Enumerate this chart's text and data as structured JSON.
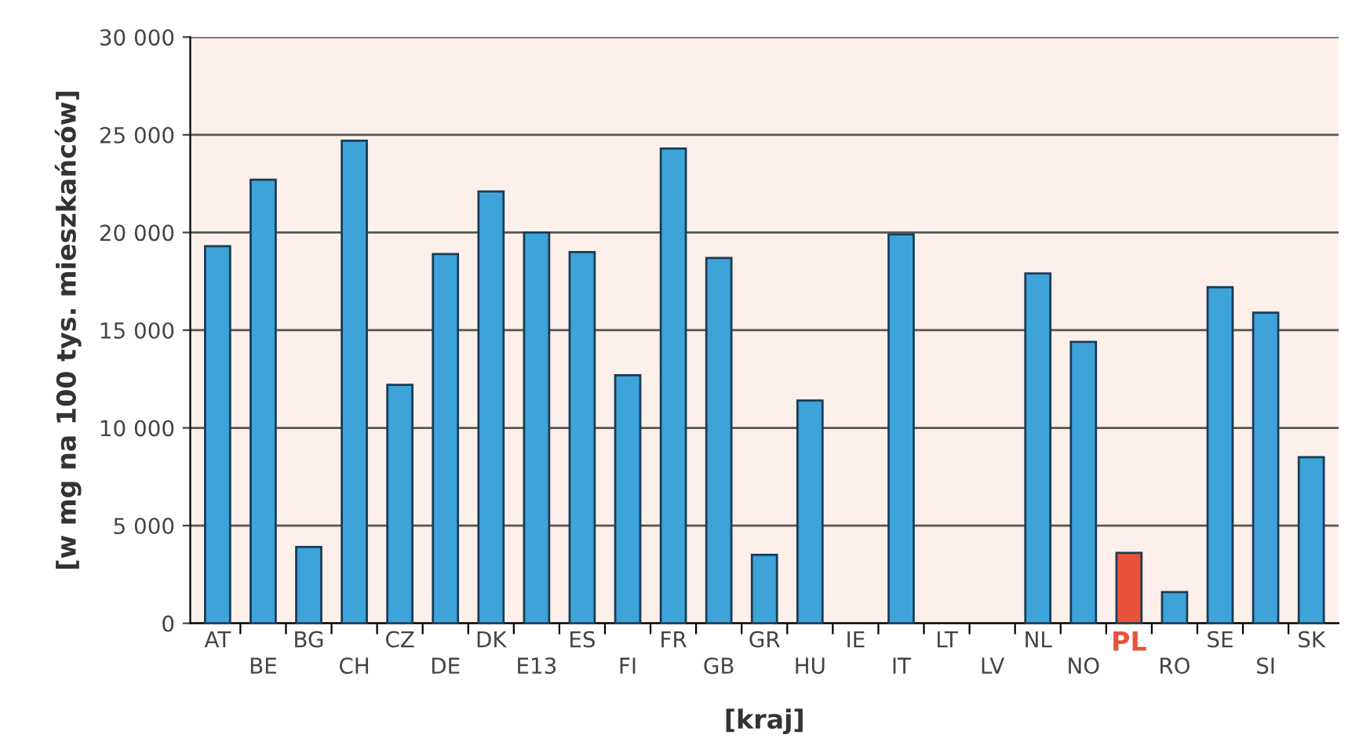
{
  "chart_data": {
    "type": "bar",
    "xlabel": "[kraj]",
    "ylabel": "[w mg na 100 tys. mieszkańców]",
    "categories": [
      "AT",
      "BE",
      "BG",
      "CH",
      "CZ",
      "DE",
      "DK",
      "E13",
      "ES",
      "FI",
      "FR",
      "GB",
      "GR",
      "HU",
      "IE",
      "IT",
      "LT",
      "LV",
      "NL",
      "NO",
      "PL",
      "RO",
      "SE",
      "SI",
      "SK"
    ],
    "values": [
      19300,
      22700,
      3900,
      24700,
      12200,
      18900,
      22100,
      20000,
      19000,
      12700,
      24300,
      18700,
      3500,
      11400,
      null,
      19900,
      null,
      null,
      17900,
      14400,
      3600,
      1600,
      17200,
      15900,
      8500
    ],
    "color": "#3ea3d8",
    "colors": [
      "#3ea3d8",
      "#3ea3d8",
      "#3ea3d8",
      "#3ea3d8",
      "#3ea3d8",
      "#3ea3d8",
      "#3ea3d8",
      "#3ea3d8",
      "#3ea3d8",
      "#3ea3d8",
      "#3ea3d8",
      "#3ea3d8",
      "#3ea3d8",
      "#3ea3d8",
      "#3ea3d8",
      "#3ea3d8",
      "#3ea3d8",
      "#3ea3d8",
      "#3ea3d8",
      "#3ea3d8",
      "#e8533a",
      "#3ea3d8",
      "#3ea3d8",
      "#3ea3d8",
      "#3ea3d8"
    ],
    "ylim": [
      0,
      30000
    ],
    "yticks": [
      0,
      {
        "value": 5000,
        "label": "5 000"
      },
      {
        "value": 10000,
        "label": "10 000"
      },
      {
        "value": 15000,
        "label": "15 000"
      },
      {
        "value": 20000,
        "label": "20 000"
      },
      {
        "value": 25000,
        "label": "25 000"
      },
      {
        "value": 30000,
        "label": "30 000"
      }
    ],
    "grid": "y",
    "legend": false
  }
}
